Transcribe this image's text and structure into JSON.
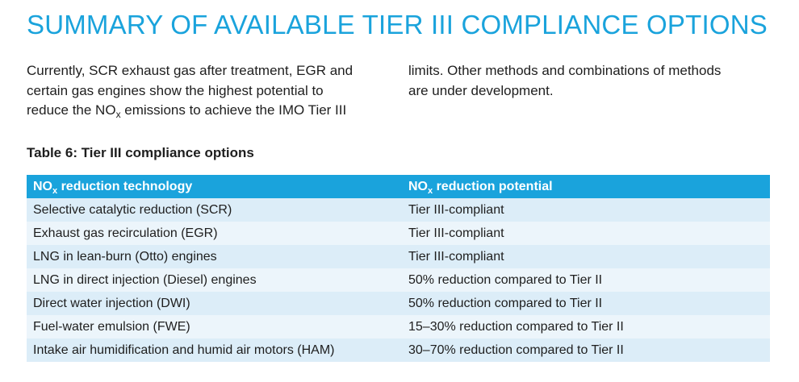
{
  "title": "SUMMARY OF AVAILABLE TIER III COMPLIANCE OPTIONS",
  "intro": {
    "col1": [
      {
        "pre": "Currently, SCR exhaust gas after treatment, EGR and",
        "sub": "",
        "post": ""
      },
      {
        "pre": "certain gas engines show the highest potential to",
        "sub": "",
        "post": ""
      },
      {
        "pre": "reduce the NO",
        "sub": "x",
        "post": " emissions to achieve the IMO Tier III"
      }
    ],
    "col2": [
      "limits. Other methods and combinations of methods",
      "are under development."
    ]
  },
  "table": {
    "caption": "Table 6: Tier III compliance options",
    "headers": [
      {
        "pre": "NO",
        "sub": "x",
        "post": " reduction technology"
      },
      {
        "pre": "NO",
        "sub": "x",
        "post": " reduction potential"
      }
    ],
    "rows": [
      {
        "technology": "Selective catalytic reduction (SCR)",
        "potential": "Tier III-compliant"
      },
      {
        "technology": "Exhaust gas recirculation (EGR)",
        "potential": "Tier III-compliant"
      },
      {
        "technology": "LNG in lean-burn (Otto) engines",
        "potential": "Tier III-compliant"
      },
      {
        "technology": "LNG in direct injection (Diesel) engines",
        "potential": "50% reduction compared to Tier II"
      },
      {
        "technology": "Direct water injection (DWI)",
        "potential": "50% reduction compared to Tier II"
      },
      {
        "technology": "Fuel-water emulsion (FWE)",
        "potential": "15–30% reduction compared to Tier II"
      },
      {
        "technology": "Intake air humidification and humid air motors (HAM)",
        "potential": "30–70% reduction compared to Tier II"
      }
    ]
  },
  "colors": {
    "accent": "#1aa3dc",
    "row_even": "#dcedf8",
    "row_odd": "#ecf5fb",
    "text": "#1e1e1e"
  }
}
